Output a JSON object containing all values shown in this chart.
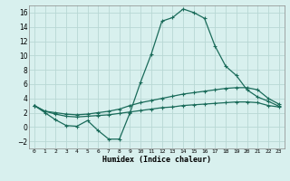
{
  "xlabel": "Humidex (Indice chaleur)",
  "bg_color": "#d8f0ee",
  "grid_color": "#b8d8d4",
  "line_color": "#1a6b5a",
  "x_values": [
    0,
    1,
    2,
    3,
    4,
    5,
    6,
    7,
    8,
    9,
    10,
    11,
    12,
    13,
    14,
    15,
    16,
    17,
    18,
    19,
    20,
    21,
    22,
    23
  ],
  "series1": [
    3.0,
    2.0,
    1.0,
    0.2,
    0.1,
    0.9,
    -0.5,
    -1.7,
    -1.7,
    2.0,
    6.3,
    10.2,
    14.8,
    15.3,
    16.5,
    16.0,
    15.2,
    11.3,
    8.5,
    7.2,
    5.2,
    4.2,
    3.6,
    2.9
  ],
  "series2": [
    3.0,
    2.2,
    2.0,
    1.8,
    1.7,
    1.8,
    2.0,
    2.2,
    2.5,
    3.0,
    3.4,
    3.7,
    4.0,
    4.3,
    4.6,
    4.8,
    5.0,
    5.2,
    5.4,
    5.5,
    5.5,
    5.2,
    4.0,
    3.2
  ],
  "series3": [
    3.0,
    2.2,
    1.8,
    1.5,
    1.4,
    1.5,
    1.6,
    1.7,
    1.9,
    2.1,
    2.3,
    2.5,
    2.7,
    2.8,
    3.0,
    3.1,
    3.2,
    3.3,
    3.4,
    3.5,
    3.5,
    3.4,
    3.0,
    2.8
  ],
  "ylim": [
    -3,
    17
  ],
  "xlim": [
    -0.5,
    23.5
  ],
  "yticks": [
    -2,
    0,
    2,
    4,
    6,
    8,
    10,
    12,
    14,
    16
  ],
  "xtick_labels": [
    "0",
    "1",
    "2",
    "3",
    "4",
    "5",
    "6",
    "7",
    "8",
    "9",
    "10",
    "11",
    "12",
    "13",
    "14",
    "15",
    "16",
    "17",
    "18",
    "19",
    "20",
    "21",
    "22",
    "23"
  ],
  "marker_size": 2.0,
  "line_width": 0.9
}
